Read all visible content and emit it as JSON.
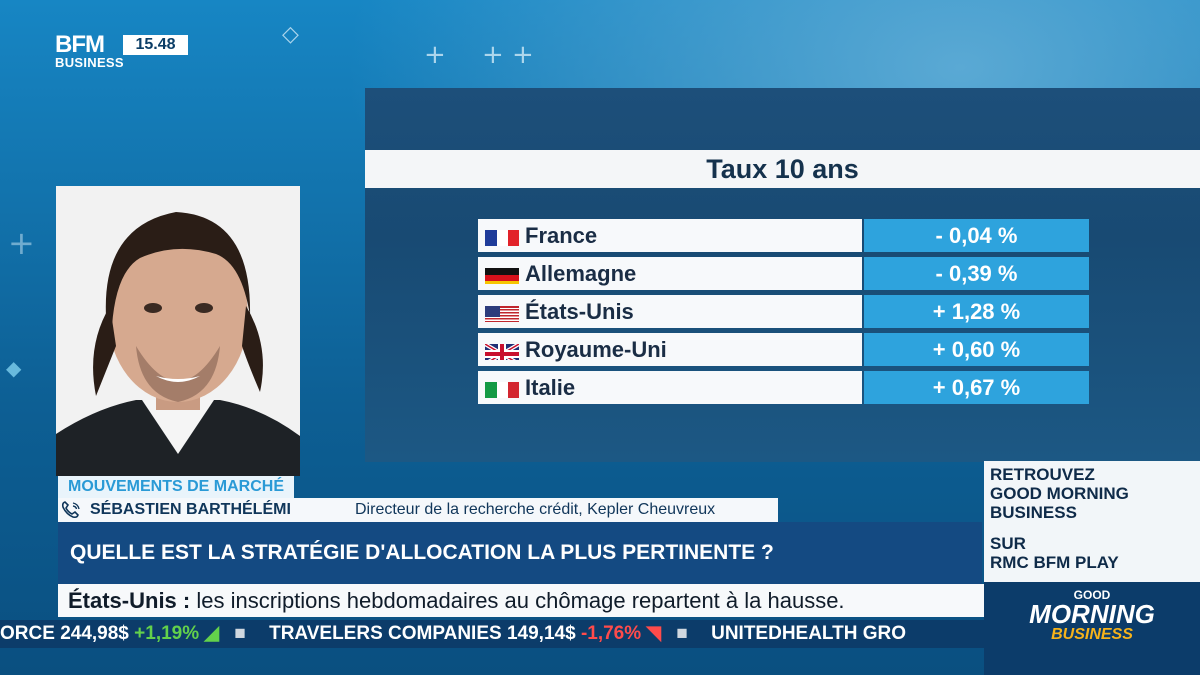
{
  "channel": {
    "logo_line1": "BFM",
    "logo_line2": "BUSINESS",
    "time": "15.48"
  },
  "table": {
    "title": "Taux 10 ans",
    "rows": [
      {
        "country": "France",
        "flag": "france-flag-icon",
        "value": "- 0,04 %"
      },
      {
        "country": "Allemagne",
        "flag": "germany-flag-icon",
        "value": "- 0,39 %"
      },
      {
        "country": "États-Unis",
        "flag": "usa-flag-icon",
        "value": "+ 1,28 %"
      },
      {
        "country": "Royaume-Uni",
        "flag": "uk-flag-icon",
        "value": "+ 0,60 %"
      },
      {
        "country": "Italie",
        "flag": "italy-flag-icon",
        "value": "+ 0,67 %"
      }
    ]
  },
  "lower_third": {
    "segment": "MOUVEMENTS DE MARCHÉ",
    "speaker_name": "SÉBASTIEN BARTHÉLÉMI",
    "speaker_role": "Directeur de la recherche crédit, Kepler Cheuvreux",
    "question": "QUELLE EST LA STRATÉGIE D'ALLOCATION LA PLUS PERTINENTE ?"
  },
  "news_ticker": {
    "topic": "États-Unis :",
    "text": "les inscriptions hebdomadaires au chômage repartent à la hausse."
  },
  "quotes_ticker": [
    {
      "name": "ORCE",
      "price": "244,98$",
      "change": "+1,19%",
      "dir": "up"
    },
    {
      "name": "TRAVELERS COMPANIES",
      "price": "149,14$",
      "change": "-1,76%",
      "dir": "down"
    },
    {
      "name": "UNITEDHEALTH GRO",
      "price": "",
      "change": "",
      "dir": ""
    }
  ],
  "promo": {
    "line1": "RETROUVEZ",
    "line2": "GOOD MORNING",
    "line3": "BUSINESS",
    "line4": "SUR",
    "line5": "RMC BFM PLAY"
  },
  "show_logo": {
    "top": "GOOD",
    "middle": "MORNING",
    "bottom": "BUSINESS"
  },
  "colors": {
    "accent_blue": "#2ea3dd",
    "navy": "#144a82",
    "up": "#63d14b",
    "down": "#ff4b4b"
  }
}
